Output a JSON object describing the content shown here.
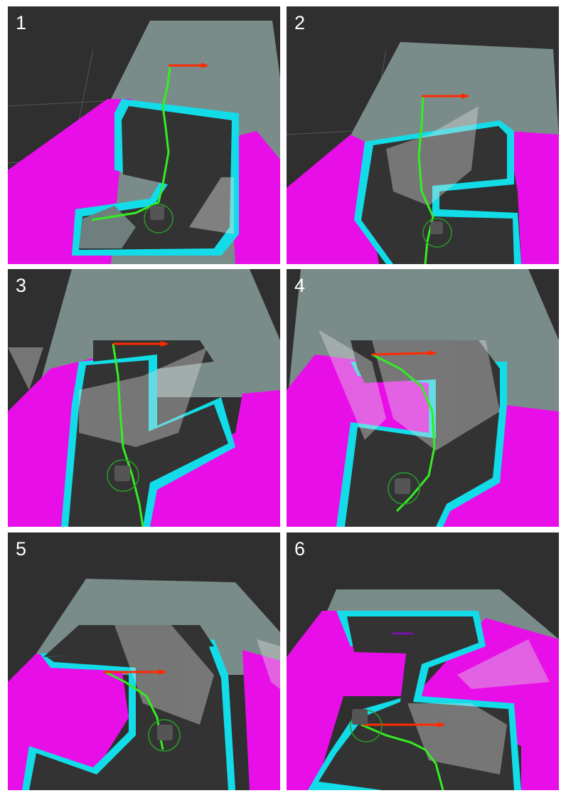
{
  "panels": [
    {
      "label": "1"
    },
    {
      "label": "2"
    },
    {
      "label": "3"
    },
    {
      "label": "4"
    },
    {
      "label": "5"
    },
    {
      "label": "6"
    }
  ],
  "colors": {
    "background": "#2f2f2f",
    "unknown_region": "#7a8c8a",
    "inflation_pink": "#e80ee8",
    "inscribed_cyan": "#12dce8",
    "free_space": "#333333",
    "global_path": "#33ee22",
    "goal_arrow": "#ff2a00",
    "footprint": "#2a9a2a",
    "grid": "#555555",
    "laser_points": "#dddddd"
  },
  "icons": {
    "robot": "robot-icon",
    "goal": "goal-arrow-icon",
    "footprint": "footprint-circle-icon"
  }
}
